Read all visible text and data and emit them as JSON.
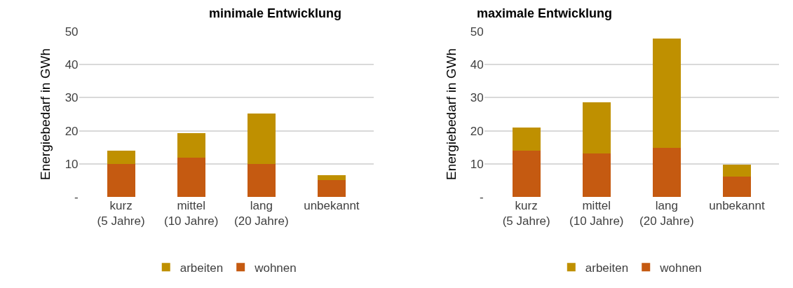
{
  "chart_data": [
    {
      "type": "bar",
      "title": "minimale Entwicklung",
      "ylabel": "Energiebedarf in GWh",
      "categories": [
        "kurz\n(5 Jahre)",
        "mittel\n(10 Jahre)",
        "lang\n(20 Jahre)",
        "unbekannt"
      ],
      "stacked": true,
      "series": [
        {
          "name": "wohnen",
          "color": "#c55a11",
          "values": [
            10,
            11.8,
            10,
            5.0
          ]
        },
        {
          "name": "arbeiten",
          "color": "#bf9000",
          "values": [
            3.9,
            7.4,
            15.2,
            1.5
          ]
        }
      ],
      "ylim": [
        0,
        50
      ],
      "yticks": [
        {
          "value": 0,
          "label": "-"
        },
        10,
        20,
        30,
        40,
        50
      ],
      "grid": "y",
      "legend": "bottom"
    },
    {
      "type": "bar",
      "title": "maximale Entwicklung",
      "ylabel": "Energiebedarf in GWh",
      "categories": [
        "kurz\n(5 Jahre)",
        "mittel\n(10 Jahre)",
        "lang\n(20 Jahre)",
        "unbekannt"
      ],
      "stacked": true,
      "series": [
        {
          "name": "wohnen",
          "color": "#c55a11",
          "values": [
            13.9,
            13.1,
            14.8,
            6.2
          ]
        },
        {
          "name": "arbeiten",
          "color": "#bf9000",
          "values": [
            7.1,
            15.4,
            33.0,
            3.5
          ]
        }
      ],
      "ylim": [
        0,
        50
      ],
      "yticks": [
        {
          "value": 0,
          "label": "-"
        },
        10,
        20,
        30,
        40,
        50
      ],
      "grid": "y",
      "legend": "bottom"
    }
  ]
}
